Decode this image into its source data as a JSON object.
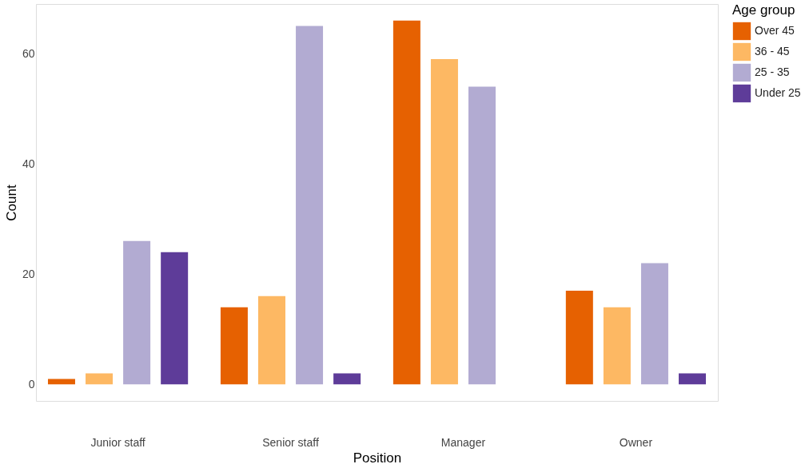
{
  "chart_data": {
    "type": "bar",
    "xlabel": "Position",
    "ylabel": "Count",
    "legend_title": "Age group",
    "legend": "right",
    "grid": false,
    "categories": [
      "Junior staff",
      "Senior staff",
      "Manager",
      "Owner"
    ],
    "ylim": [
      -3,
      69
    ],
    "yticks": [
      0,
      20,
      40,
      60
    ],
    "series": [
      {
        "name": "Over 45",
        "color": "#e66101",
        "values": [
          1,
          14,
          66,
          17
        ]
      },
      {
        "name": "36 - 45",
        "color": "#fdb863",
        "values": [
          2,
          16,
          59,
          14
        ]
      },
      {
        "name": "25 - 35",
        "color": "#b2abd2",
        "values": [
          26,
          65,
          54,
          22
        ]
      },
      {
        "name": "Under 25",
        "color": "#5e3c99",
        "values": [
          24,
          2,
          null,
          2
        ]
      }
    ]
  }
}
